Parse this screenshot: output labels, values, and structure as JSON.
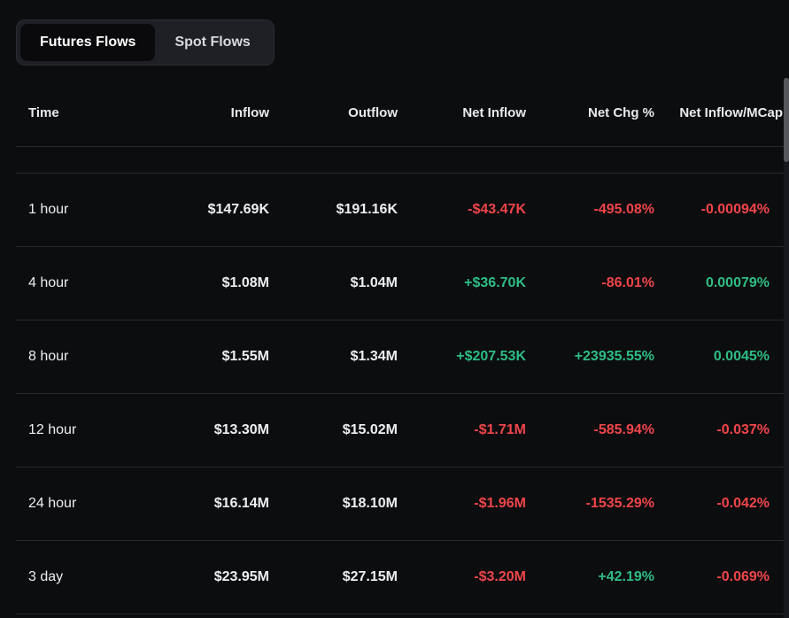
{
  "colors": {
    "white": "#eceef0",
    "red": "#ef454a",
    "green": "#2ebd85"
  },
  "tabs": {
    "futures": {
      "label": "Futures Flows",
      "active": true
    },
    "spot": {
      "label": "Spot Flows",
      "active": false
    }
  },
  "table": {
    "columns": [
      "Time",
      "Inflow",
      "Outflow",
      "Net Inflow",
      "Net Chg %",
      "Net Inflow/MCap"
    ],
    "rows": [
      {
        "cells": [
          {
            "text": "1 hour",
            "color": "white"
          },
          {
            "text": "$147.69K",
            "color": "white"
          },
          {
            "text": "$191.16K",
            "color": "white"
          },
          {
            "text": "-$43.47K",
            "color": "red"
          },
          {
            "text": "-495.08%",
            "color": "red"
          },
          {
            "text": "-0.00094%",
            "color": "red"
          }
        ]
      },
      {
        "cells": [
          {
            "text": "4 hour",
            "color": "white"
          },
          {
            "text": "$1.08M",
            "color": "white"
          },
          {
            "text": "$1.04M",
            "color": "white"
          },
          {
            "text": "+$36.70K",
            "color": "green"
          },
          {
            "text": "-86.01%",
            "color": "red"
          },
          {
            "text": "0.00079%",
            "color": "green"
          }
        ]
      },
      {
        "cells": [
          {
            "text": "8 hour",
            "color": "white"
          },
          {
            "text": "$1.55M",
            "color": "white"
          },
          {
            "text": "$1.34M",
            "color": "white"
          },
          {
            "text": "+$207.53K",
            "color": "green"
          },
          {
            "text": "+23935.55%",
            "color": "green"
          },
          {
            "text": "0.0045%",
            "color": "green"
          }
        ]
      },
      {
        "cells": [
          {
            "text": "12 hour",
            "color": "white"
          },
          {
            "text": "$13.30M",
            "color": "white"
          },
          {
            "text": "$15.02M",
            "color": "white"
          },
          {
            "text": "-$1.71M",
            "color": "red"
          },
          {
            "text": "-585.94%",
            "color": "red"
          },
          {
            "text": "-0.037%",
            "color": "red"
          }
        ]
      },
      {
        "cells": [
          {
            "text": "24 hour",
            "color": "white"
          },
          {
            "text": "$16.14M",
            "color": "white"
          },
          {
            "text": "$18.10M",
            "color": "white"
          },
          {
            "text": "-$1.96M",
            "color": "red"
          },
          {
            "text": "-1535.29%",
            "color": "red"
          },
          {
            "text": "-0.042%",
            "color": "red"
          }
        ]
      },
      {
        "cells": [
          {
            "text": "3 day",
            "color": "white"
          },
          {
            "text": "$23.95M",
            "color": "white"
          },
          {
            "text": "$27.15M",
            "color": "white"
          },
          {
            "text": "-$3.20M",
            "color": "red"
          },
          {
            "text": "+42.19%",
            "color": "green"
          },
          {
            "text": "-0.069%",
            "color": "red"
          }
        ]
      }
    ]
  }
}
